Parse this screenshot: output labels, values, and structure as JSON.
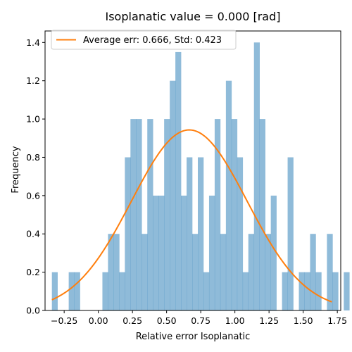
{
  "chart_data": {
    "type": "histogram",
    "title": "Isoplanatic value = 0.000 [rad]",
    "xlabel": "Relative error Isoplanatic",
    "ylabel": "Frequency",
    "xlim": [
      -0.39,
      1.775
    ],
    "ylim": [
      0,
      1.46
    ],
    "xticks": [
      -0.25,
      0.0,
      0.25,
      0.5,
      0.75,
      1.0,
      1.25,
      1.5,
      1.75
    ],
    "xtick_labels": [
      "−0.25",
      "0.00",
      "0.25",
      "0.50",
      "0.75",
      "1.00",
      "1.25",
      "1.50",
      "1.75"
    ],
    "yticks": [
      0.0,
      0.2,
      0.4,
      0.6,
      0.8,
      1.0,
      1.2,
      1.4
    ],
    "ytick_labels": [
      "0.0",
      "0.2",
      "0.4",
      "0.6",
      "0.8",
      "1.0",
      "1.2",
      "1.4"
    ],
    "bins": {
      "start": -0.34,
      "width": 0.0411,
      "values": [
        0.2,
        0,
        0,
        0.2,
        0.2,
        0,
        0,
        0,
        0,
        0.2,
        0.4,
        0.4,
        0.2,
        0.8,
        1.0,
        1.0,
        0.4,
        1.0,
        0.6,
        0.6,
        1.0,
        1.2,
        1.35,
        0.6,
        0.8,
        0.4,
        0.8,
        0.2,
        0.6,
        1.0,
        0.4,
        1.2,
        1.0,
        0.8,
        0.2,
        0.4,
        1.4,
        1.0,
        0.4,
        0.6,
        0,
        0.2,
        0.8,
        0,
        0.2,
        0.2,
        0.4,
        0.2,
        0,
        0.4,
        0.2,
        0,
        0.2
      ]
    },
    "series": [
      {
        "name": "Average err: 0.666, Std: 0.423",
        "type": "line",
        "mean": 0.666,
        "std": 0.423,
        "x_range": [
          -0.34,
          1.71
        ]
      }
    ],
    "colors": {
      "bars": "#1f77b4",
      "bars_opacity": 0.5,
      "line": "#ff7f0e"
    },
    "legend": {
      "position": "top-left",
      "entries": [
        "Average err: 0.666, Std: 0.423"
      ]
    },
    "grid": false
  }
}
